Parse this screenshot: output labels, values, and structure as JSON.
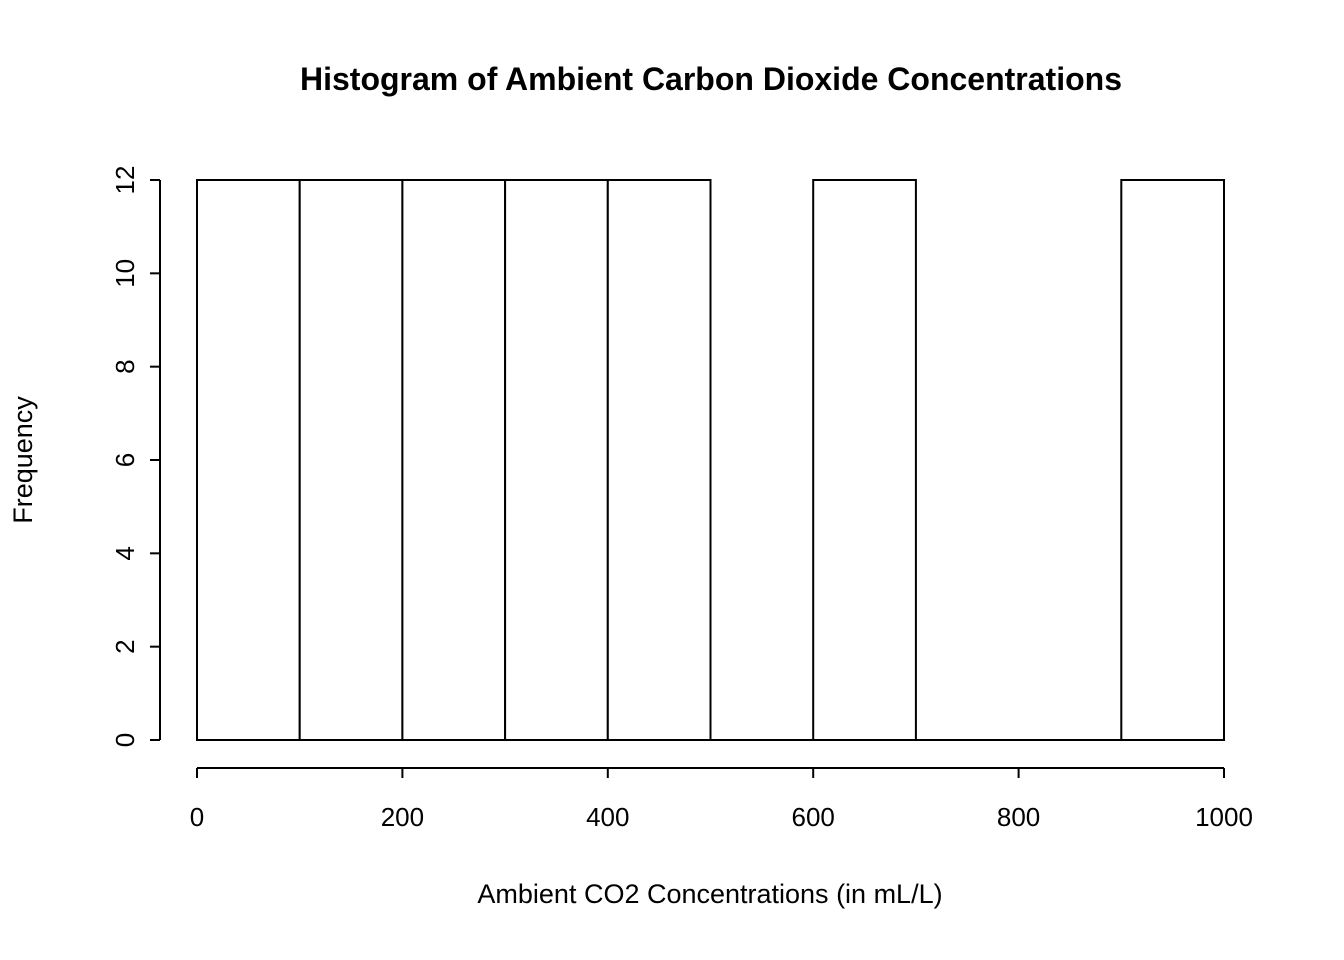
{
  "chart_data": {
    "type": "bar",
    "subtype": "histogram",
    "title": "Histogram of Ambient Carbon Dioxide Concentrations",
    "xlabel": "Ambient CO2 Concentrations (in mL/L)",
    "ylabel": "Frequency",
    "breaks": [
      0,
      100,
      200,
      300,
      400,
      500,
      600,
      700,
      800,
      900,
      1000
    ],
    "counts": [
      12,
      12,
      12,
      12,
      12,
      0,
      12,
      0,
      0,
      12
    ],
    "xlim": [
      0,
      1000
    ],
    "ylim": [
      0,
      12
    ],
    "x_ticks": [
      0,
      200,
      400,
      600,
      800,
      1000
    ],
    "y_ticks": [
      0,
      2,
      4,
      6,
      8,
      10,
      12
    ],
    "bar_fill": "#ffffff",
    "bar_stroke": "#000000",
    "axis_color": "#000000",
    "background": "#ffffff",
    "grid": false,
    "legend_position": "none"
  }
}
